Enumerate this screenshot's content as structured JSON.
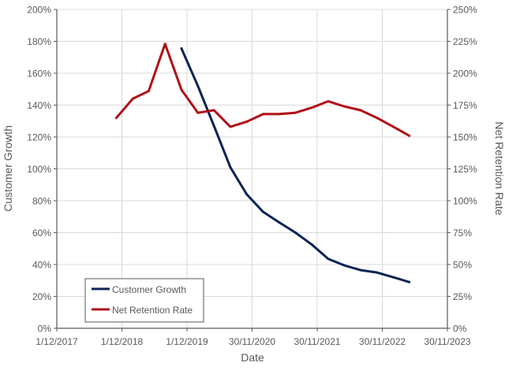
{
  "chart_data": {
    "type": "line",
    "xlabel": "Date",
    "ylabel_left": "Customer Growth",
    "ylabel_right": "Net Retention Rate",
    "x_range": [
      "2017-12-01",
      "2023-11-30"
    ],
    "x_ticks": [
      {
        "date": "2017-12-01",
        "label": "1/12/2017"
      },
      {
        "date": "2018-12-01",
        "label": "1/12/2018"
      },
      {
        "date": "2019-12-01",
        "label": "1/12/2019"
      },
      {
        "date": "2020-11-30",
        "label": "30/11/2020"
      },
      {
        "date": "2021-11-30",
        "label": "30/11/2021"
      },
      {
        "date": "2022-11-30",
        "label": "30/11/2022"
      },
      {
        "date": "2023-11-30",
        "label": "30/11/2023"
      }
    ],
    "y_left": {
      "range": [
        0,
        200
      ],
      "ticks": [
        {
          "value": 0,
          "label": "0%"
        },
        {
          "value": 20,
          "label": "20%"
        },
        {
          "value": 40,
          "label": "40%"
        },
        {
          "value": 60,
          "label": "60%"
        },
        {
          "value": 80,
          "label": "80%"
        },
        {
          "value": 100,
          "label": "100%"
        },
        {
          "value": 120,
          "label": "120%"
        },
        {
          "value": 140,
          "label": "140%"
        },
        {
          "value": 160,
          "label": "160%"
        },
        {
          "value": 180,
          "label": "180%"
        },
        {
          "value": 200,
          "label": "200%"
        }
      ]
    },
    "y_right": {
      "range": [
        0,
        250
      ],
      "ticks": [
        {
          "value": 0,
          "label": "0%"
        },
        {
          "value": 25,
          "label": "25%"
        },
        {
          "value": 50,
          "label": "50%"
        },
        {
          "value": 75,
          "label": "75%"
        },
        {
          "value": 100,
          "label": "100%"
        },
        {
          "value": 125,
          "label": "125%"
        },
        {
          "value": 150,
          "label": "150%"
        },
        {
          "value": 175,
          "label": "175%"
        },
        {
          "value": 200,
          "label": "200%"
        },
        {
          "value": 225,
          "label": "225%"
        },
        {
          "value": 250,
          "label": "250%"
        }
      ]
    },
    "grid": true,
    "legend_position": "bottom-left",
    "series": [
      {
        "name": "Customer Growth",
        "axis": "left",
        "color": "#0b2454",
        "points": [
          {
            "x": "2019-10-31",
            "y": 175.5
          },
          {
            "x": "2020-01-31",
            "y": 152
          },
          {
            "x": "2020-04-30",
            "y": 127
          },
          {
            "x": "2020-07-31",
            "y": 101
          },
          {
            "x": "2020-10-31",
            "y": 84
          },
          {
            "x": "2021-01-31",
            "y": 73
          },
          {
            "x": "2021-04-30",
            "y": 66.5
          },
          {
            "x": "2021-07-31",
            "y": 60
          },
          {
            "x": "2021-10-31",
            "y": 52.5
          },
          {
            "x": "2022-01-31",
            "y": 43.5
          },
          {
            "x": "2022-04-30",
            "y": 39.5
          },
          {
            "x": "2022-07-31",
            "y": 36.5
          },
          {
            "x": "2022-10-31",
            "y": 35
          },
          {
            "x": "2023-01-31",
            "y": 32
          },
          {
            "x": "2023-04-30",
            "y": 29
          }
        ]
      },
      {
        "name": "Net Retention Rate",
        "axis": "right",
        "color": "#b01116",
        "points": [
          {
            "x": "2018-10-31",
            "y": 165
          },
          {
            "x": "2019-01-31",
            "y": 180
          },
          {
            "x": "2019-04-30",
            "y": 186
          },
          {
            "x": "2019-07-31",
            "y": 223
          },
          {
            "x": "2019-10-31",
            "y": 187
          },
          {
            "x": "2020-01-31",
            "y": 169
          },
          {
            "x": "2020-04-30",
            "y": 171
          },
          {
            "x": "2020-07-31",
            "y": 158
          },
          {
            "x": "2020-10-31",
            "y": 162
          },
          {
            "x": "2021-01-31",
            "y": 168
          },
          {
            "x": "2021-04-30",
            "y": 168
          },
          {
            "x": "2021-07-31",
            "y": 169
          },
          {
            "x": "2021-10-31",
            "y": 173
          },
          {
            "x": "2022-01-31",
            "y": 178
          },
          {
            "x": "2022-04-30",
            "y": 174
          },
          {
            "x": "2022-07-31",
            "y": 171
          },
          {
            "x": "2022-10-31",
            "y": 165
          },
          {
            "x": "2023-01-31",
            "y": 158
          },
          {
            "x": "2023-04-30",
            "y": 151
          }
        ]
      }
    ]
  }
}
